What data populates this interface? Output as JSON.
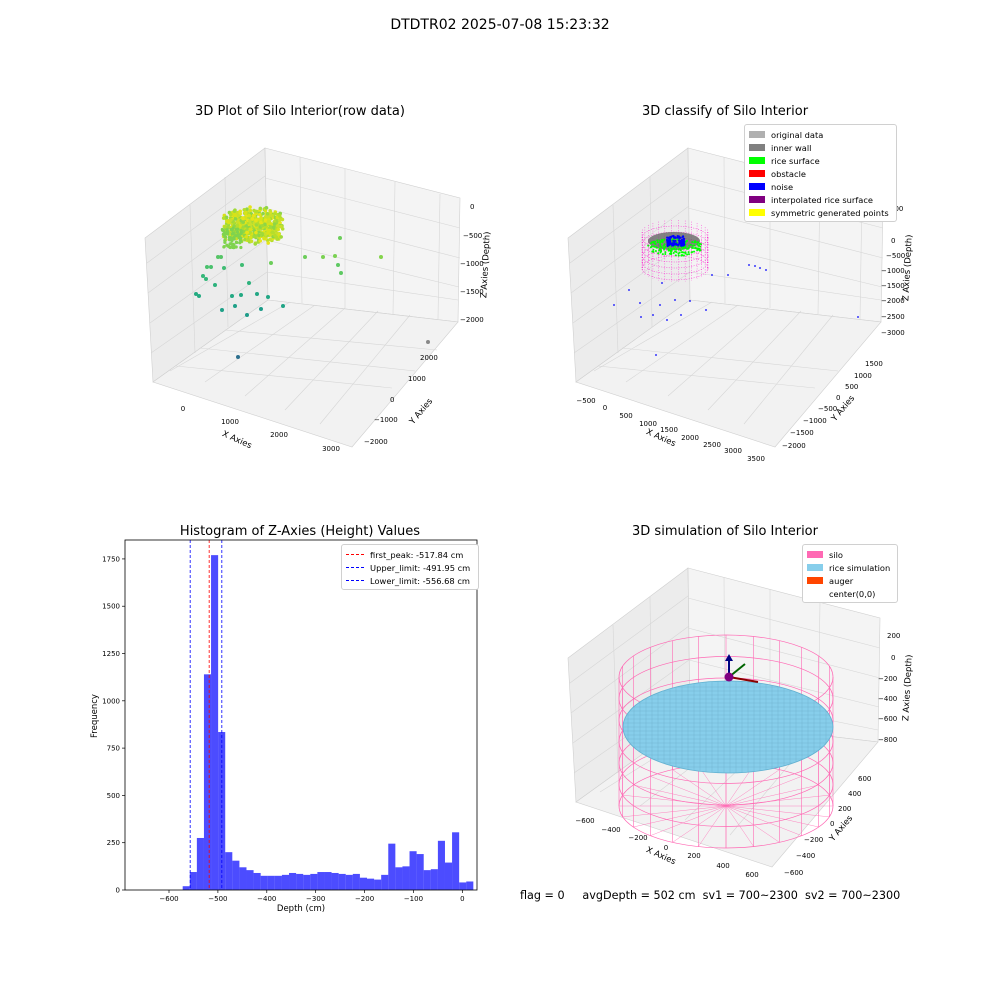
{
  "suptitle": "DTDTR02 2025-07-08 15:23:32",
  "panels": {
    "raw": {
      "title": "3D Plot of Silo Interior(row data)",
      "xlabel": "X Axies",
      "ylabel": "Y Axies",
      "zlabel": "Z Axies (Depth)",
      "xticks": [
        "0",
        "1000",
        "2000",
        "3000"
      ],
      "yticks": [
        "2000",
        "1000",
        "0",
        "−1000",
        "−2000"
      ],
      "zticks": [
        "0",
        "−500",
        "−1000",
        "−1500",
        "−2000"
      ]
    },
    "classify": {
      "title": "3D classify of Silo Interior",
      "xlabel": "X Axies",
      "ylabel": "Y Axies",
      "zlabel": "Z Axies (Depth)",
      "xticks": [
        "−500",
        "0",
        "500",
        "1000",
        "1500",
        "2000",
        "2500",
        "3000",
        "3500"
      ],
      "yticks": [
        "1500",
        "1000",
        "500",
        "0",
        "−500",
        "−1000",
        "−1500",
        "−2000"
      ],
      "zticks": [
        "500",
        "0",
        "−500",
        "−1000",
        "−1500",
        "−2000",
        "−2500",
        "−3000"
      ],
      "legend": [
        {
          "label": "original data",
          "color": "#b0b0b0"
        },
        {
          "label": "inner wall",
          "color": "#808080"
        },
        {
          "label": "rice surface",
          "color": "#00ff00"
        },
        {
          "label": "obstacle",
          "color": "#ff0000"
        },
        {
          "label": "noise",
          "color": "#0000ff"
        },
        {
          "label": "interpolated rice surface",
          "color": "#800080"
        },
        {
          "label": "symmetric generated points",
          "color": "#ffff00"
        }
      ]
    },
    "simulation": {
      "title": "3D simulation of Silo Interior",
      "xlabel": "X Axies",
      "ylabel": "Y Axies",
      "zlabel": "Z Axies (Depth)",
      "xticks": [
        "−600",
        "−400",
        "−200",
        "0",
        "200",
        "400",
        "600"
      ],
      "yticks": [
        "600",
        "400",
        "200",
        "0",
        "−200",
        "−400",
        "−600"
      ],
      "zticks": [
        "200",
        "0",
        "−200",
        "−400",
        "−600",
        "−800"
      ],
      "legend": [
        {
          "label": "silo",
          "color": "#ff69b4"
        },
        {
          "label": "rice simulation",
          "color": "#87ceeb"
        },
        {
          "label": "auger",
          "color": "#ff4500"
        },
        {
          "label": "center(0,0)",
          "color": ""
        }
      ]
    }
  },
  "footer": {
    "flag": "flag = 0",
    "avg": "avgDepth = 502 cm",
    "sv1": "sv1 = 700~2300",
    "sv2": "sv2 = 700~2300"
  },
  "chart_data": [
    {
      "type": "bar",
      "title": "Histogram of Z-Axies (Height) Values",
      "xlabel": "Depth (cm)",
      "ylabel": "Frequency",
      "xlim": [
        -690,
        30
      ],
      "ylim": [
        0,
        1850
      ],
      "xticks": [
        -600,
        -500,
        -400,
        -300,
        -200,
        -100,
        0
      ],
      "yticks": [
        0,
        250,
        500,
        750,
        1000,
        1250,
        1500,
        1750
      ],
      "bin_width": 14.5,
      "bins": [
        [
          -572,
          20
        ],
        [
          -557.5,
          95
        ],
        [
          -543,
          275
        ],
        [
          -528.5,
          1140
        ],
        [
          -514,
          1770
        ],
        [
          -499.5,
          835
        ],
        [
          -485,
          200
        ],
        [
          -470.5,
          155
        ],
        [
          -456,
          120
        ],
        [
          -441.5,
          105
        ],
        [
          -427,
          90
        ],
        [
          -412.5,
          75
        ],
        [
          -398,
          75
        ],
        [
          -383.5,
          75
        ],
        [
          -369,
          80
        ],
        [
          -354.5,
          90
        ],
        [
          -340,
          85
        ],
        [
          -325.5,
          80
        ],
        [
          -311,
          85
        ],
        [
          -296.5,
          95
        ],
        [
          -282,
          95
        ],
        [
          -267.5,
          90
        ],
        [
          -253,
          85
        ],
        [
          -238.5,
          80
        ],
        [
          -224,
          85
        ],
        [
          -209.5,
          65
        ],
        [
          -195,
          60
        ],
        [
          -180.5,
          55
        ],
        [
          -166,
          80
        ],
        [
          -151.5,
          245
        ],
        [
          -137,
          120
        ],
        [
          -122.5,
          125
        ],
        [
          -108,
          205
        ],
        [
          -93.5,
          190
        ],
        [
          -79,
          105
        ],
        [
          -64.5,
          110
        ],
        [
          -50,
          260
        ],
        [
          -35.5,
          145
        ],
        [
          -21,
          305
        ],
        [
          -6.5,
          40
        ],
        [
          8,
          45
        ]
      ],
      "color": "#0000ff",
      "vlines": [
        {
          "label": "first_peak: -517.84 cm",
          "x": -517.84,
          "color": "#ff0000"
        },
        {
          "label": "Upper_limit: -491.95 cm",
          "x": -491.95,
          "color": "#0000ff"
        },
        {
          "label": "Lower_limit: -556.68 cm",
          "x": -556.68,
          "color": "#0000ff"
        }
      ],
      "legend_position": "upper right"
    }
  ]
}
